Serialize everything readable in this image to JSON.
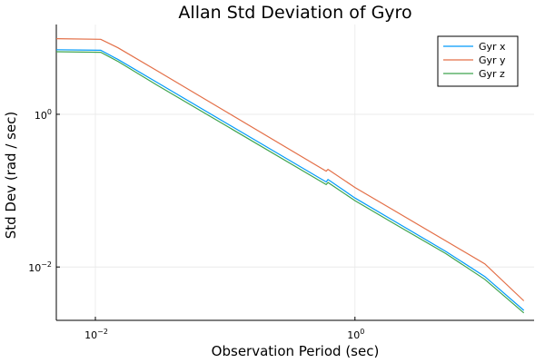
{
  "chart_data": {
    "type": "line",
    "title": "Allan Std Deviation of Gyro",
    "xlabel": "Observation Period (sec)",
    "ylabel": "Std Dev (rad / sec)",
    "x_scale": "log",
    "y_scale": "log",
    "xlim": [
      0.005,
      24
    ],
    "ylim": [
      0.002,
      15
    ],
    "x_ticks": [
      {
        "value": 0.01,
        "base": "10",
        "exp": "−2"
      },
      {
        "value": 1,
        "base": "10",
        "exp": "0"
      }
    ],
    "y_ticks": [
      {
        "value": 0.01,
        "base": "10",
        "exp": "−2"
      },
      {
        "value": 1,
        "base": "10",
        "exp": "0"
      }
    ],
    "grid": true,
    "legend_position": "top-right",
    "series": [
      {
        "name": "Gyr x",
        "color": "#009AFA",
        "points": [
          [
            0.005,
            7.0
          ],
          [
            0.011,
            6.9
          ],
          [
            0.015,
            5.2
          ],
          [
            0.03,
            2.6
          ],
          [
            0.1,
            0.78
          ],
          [
            0.6,
            0.13
          ],
          [
            0.62,
            0.14
          ],
          [
            1,
            0.08
          ],
          [
            2,
            0.04
          ],
          [
            5,
            0.016
          ],
          [
            10,
            0.0075
          ],
          [
            20,
            0.0027
          ]
        ]
      },
      {
        "name": "Gyr y",
        "color": "#E36F47",
        "points": [
          [
            0.005,
            9.8
          ],
          [
            0.011,
            9.6
          ],
          [
            0.015,
            7.4
          ],
          [
            0.03,
            3.7
          ],
          [
            0.1,
            1.1
          ],
          [
            0.6,
            0.18
          ],
          [
            0.62,
            0.19
          ],
          [
            1,
            0.11
          ],
          [
            2,
            0.055
          ],
          [
            5,
            0.022
          ],
          [
            10,
            0.011
          ],
          [
            20,
            0.0036
          ]
        ]
      },
      {
        "name": "Gyr z",
        "color": "#3EA44E",
        "points": [
          [
            0.005,
            6.6
          ],
          [
            0.011,
            6.5
          ],
          [
            0.015,
            4.9
          ],
          [
            0.03,
            2.4
          ],
          [
            0.1,
            0.72
          ],
          [
            0.6,
            0.12
          ],
          [
            0.62,
            0.128
          ],
          [
            1,
            0.074
          ],
          [
            2,
            0.037
          ],
          [
            5,
            0.015
          ],
          [
            10,
            0.0069
          ],
          [
            20,
            0.0025
          ]
        ]
      }
    ]
  }
}
